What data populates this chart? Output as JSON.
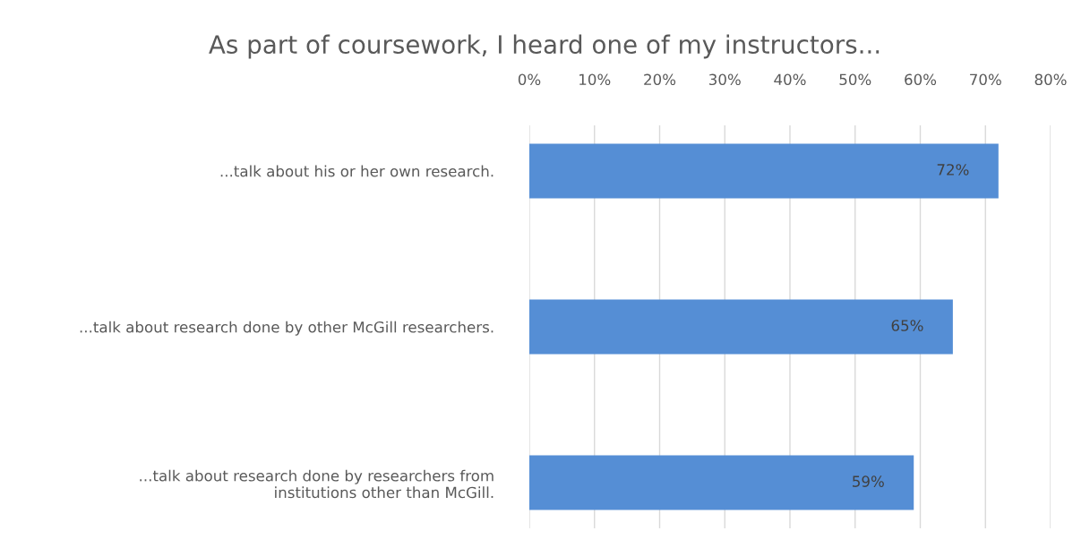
{
  "chart_data": {
    "type": "bar",
    "orientation": "horizontal",
    "title": "As part of coursework, I heard one of my instructors...",
    "categories": [
      "...talk about his or her own research.",
      "...talk about research done by other McGill researchers.",
      "...talk about research done by researchers from\ninstitutions other than McGill."
    ],
    "values": [
      72,
      65,
      59
    ],
    "value_labels": [
      "72%",
      "65%",
      "59%"
    ],
    "color": "#558ed5",
    "xlim": [
      0,
      80
    ],
    "xticks": [
      {
        "value": 0,
        "label": "0%"
      },
      {
        "value": 10,
        "label": "10%"
      },
      {
        "value": 20,
        "label": "20%"
      },
      {
        "value": 30,
        "label": "30%"
      },
      {
        "value": 40,
        "label": "40%"
      },
      {
        "value": 50,
        "label": "50%"
      },
      {
        "value": 60,
        "label": "60%"
      },
      {
        "value": 70,
        "label": "70%"
      },
      {
        "value": 80,
        "label": "80%"
      }
    ],
    "grid": "x",
    "legend": false
  }
}
